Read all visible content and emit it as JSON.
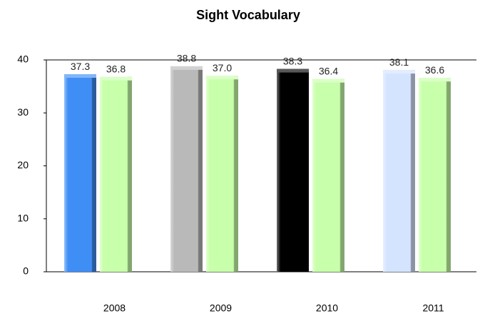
{
  "chart_data": {
    "type": "bar",
    "title": "Sight Vocabulary",
    "categories": [
      "2008",
      "2009",
      "2010",
      "2011"
    ],
    "series": [
      {
        "colors": [
          "#3f8ef5",
          "#b9b9b9",
          "#000000",
          "#d4e4ff"
        ],
        "values": [
          37.3,
          38.8,
          38.3,
          38.1
        ]
      },
      {
        "color": "#c8ffaa",
        "values": [
          36.8,
          37.0,
          36.4,
          36.6
        ],
        "value_labels": [
          "36.8",
          "37.0",
          "36.4",
          "36.6"
        ]
      }
    ],
    "ylim": [
      0,
      40
    ],
    "yticks": [
      0,
      10,
      20,
      30,
      40
    ],
    "grid": false
  }
}
